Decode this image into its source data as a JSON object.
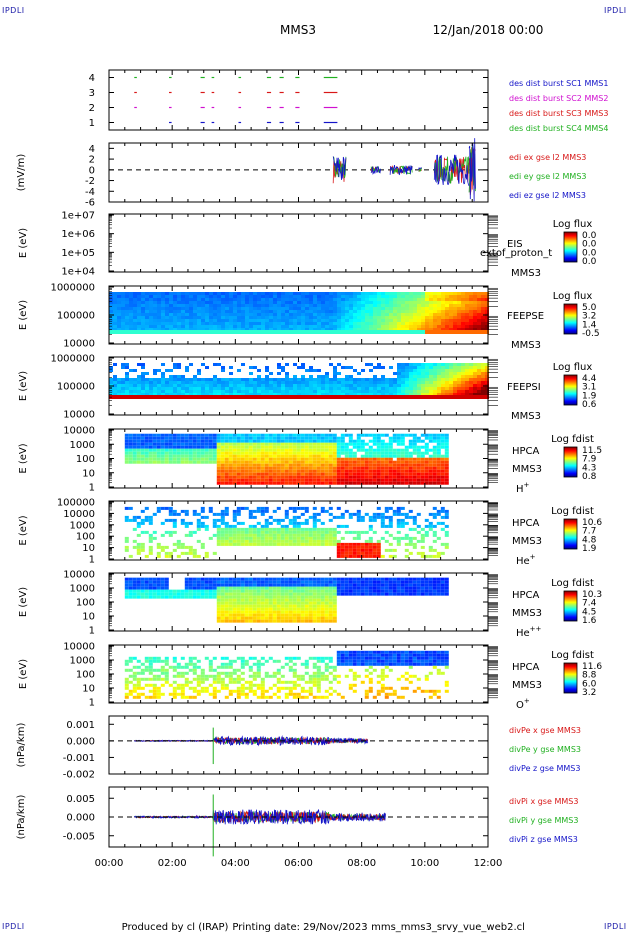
{
  "header": {
    "corner_logo": "IPDLI",
    "spacecraft": "MMS3",
    "date_time": "12/Jan/2018 00:00"
  },
  "footer": {
    "credit": "Produced by cl (IRAP)",
    "printing_date": "Printing date: 29/Nov/2023",
    "script_name": "mms_mms3_srvy_vue_web2.cl"
  },
  "colors": {
    "blue": "#1414c8",
    "magenta": "#d010d0",
    "red": "#d81818",
    "green": "#20b020"
  },
  "chart_data": [
    {
      "id": "burst",
      "type": "scatter",
      "yticks": [
        "4",
        "3",
        "2",
        "1"
      ],
      "ylim": [
        0.5,
        4.5
      ],
      "grid": false,
      "legend": [
        "des dist burst SC1 MMS1",
        "des dist burst SC2 MMS2",
        "des dist burst SC3 MMS3",
        "des dist burst SC4 MMS4"
      ],
      "legend_colors": [
        "#1414c8",
        "#d010d0",
        "#d81818",
        "#20b020"
      ],
      "segments_hours": [
        [
          0.8,
          0.85
        ],
        [
          1.9,
          1.95
        ],
        [
          2.9,
          3.0
        ],
        [
          3.25,
          3.3
        ],
        [
          4.1,
          4.15
        ],
        [
          5.0,
          5.1
        ],
        [
          5.4,
          5.5
        ],
        [
          5.9,
          6.0
        ],
        [
          6.8,
          7.2
        ]
      ]
    },
    {
      "id": "edi",
      "type": "line",
      "ylabel": "(mV/m)",
      "yticks": [
        "4",
        "2",
        "0",
        "-2",
        "-4",
        "-6"
      ],
      "ylim": [
        -6,
        5
      ],
      "legend": [
        "edi ex gse l2 MMS3",
        "edi ey gse l2 MMS3",
        "edi ez gse l2 MMS3"
      ],
      "legend_colors": [
        "#d81818",
        "#20b020",
        "#1414c8"
      ]
    },
    {
      "id": "eis",
      "type": "heatmap",
      "ylabel": "E (eV)",
      "yticks": [
        "1e+07",
        "1e+06",
        "1e+05",
        "1e+04"
      ],
      "right_labels": [
        "EIS",
        "MMS3"
      ],
      "overlay_text": "extof_proton_t",
      "colorbar_title": "Log flux",
      "colorbar_ticks": [
        "0.0",
        "0.0",
        "0.0",
        "0.0"
      ]
    },
    {
      "id": "feepse",
      "type": "heatmap",
      "ylabel": "E (eV)",
      "yticks": [
        "1000000",
        "100000",
        "10000"
      ],
      "right_labels": [
        "FEEPSE",
        "MMS3"
      ],
      "colorbar_title": "Log flux",
      "colorbar_ticks": [
        "5.0",
        "3.2",
        "1.4",
        "-0.5"
      ]
    },
    {
      "id": "feepsi",
      "type": "heatmap",
      "ylabel": "E (eV)",
      "yticks": [
        "1000000",
        "100000",
        "10000"
      ],
      "right_labels": [
        "FEEPSI",
        "MMS3"
      ],
      "colorbar_title": "Log flux",
      "colorbar_ticks": [
        "4.4",
        "3.1",
        "1.9",
        "0.6"
      ]
    },
    {
      "id": "hpca_h",
      "type": "heatmap",
      "ylabel": "E (eV)",
      "yticks": [
        "10000",
        "1000",
        "100",
        "10",
        "1"
      ],
      "right_labels": [
        "HPCA",
        "MMS3",
        "H+"
      ],
      "colorbar_title": "Log fdist",
      "colorbar_ticks": [
        "11.5",
        "7.9",
        "4.3",
        "0.8"
      ]
    },
    {
      "id": "hpca_he",
      "type": "heatmap",
      "ylabel": "E (eV)",
      "yticks": [
        "100000",
        "10000",
        "1000",
        "100",
        "10",
        "1"
      ],
      "right_labels": [
        "HPCA",
        "MMS3",
        "He+"
      ],
      "colorbar_title": "Log fdist",
      "colorbar_ticks": [
        "10.6",
        "7.7",
        "4.8",
        "1.9"
      ]
    },
    {
      "id": "hpca_hepp",
      "type": "heatmap",
      "ylabel": "E (eV)",
      "yticks": [
        "10000",
        "1000",
        "100",
        "10",
        "1"
      ],
      "right_labels": [
        "HPCA",
        "MMS3",
        "He++"
      ],
      "colorbar_title": "Log fdist",
      "colorbar_ticks": [
        "10.3",
        "7.4",
        "4.5",
        "1.6"
      ]
    },
    {
      "id": "hpca_o",
      "type": "heatmap",
      "ylabel": "E (eV)",
      "yticks": [
        "10000",
        "1000",
        "100",
        "10",
        "1"
      ],
      "right_labels": [
        "HPCA",
        "MMS3",
        "O+"
      ],
      "colorbar_title": "Log fdist",
      "colorbar_ticks": [
        "11.6",
        "8.8",
        "6.0",
        "3.2"
      ]
    },
    {
      "id": "divpe",
      "type": "line",
      "ylabel": "(nPa/km)",
      "yticks": [
        "0.001",
        "0.000",
        "-0.001",
        "-0.002"
      ],
      "ylim": [
        -0.002,
        0.0015
      ],
      "legend": [
        "divPe x gse MMS3",
        "divPe y gse MMS3",
        "divPe z gse MMS3"
      ],
      "legend_colors": [
        "#d81818",
        "#20b020",
        "#1414c8"
      ]
    },
    {
      "id": "divpi",
      "type": "line",
      "ylabel": "(nPa/km)",
      "yticks": [
        "0.005",
        "0.000",
        "-0.005"
      ],
      "ylim": [
        -0.008,
        0.008
      ],
      "legend": [
        "divPi x gse MMS3",
        "divPi y gse MMS3",
        "divPi z gse MMS3"
      ],
      "legend_colors": [
        "#d81818",
        "#20b020",
        "#1414c8"
      ]
    }
  ],
  "time_axis": {
    "xlim_hours": [
      0,
      12
    ],
    "ticks": [
      "00:00",
      "02:00",
      "04:00",
      "06:00",
      "08:00",
      "10:00",
      "12:00"
    ]
  }
}
